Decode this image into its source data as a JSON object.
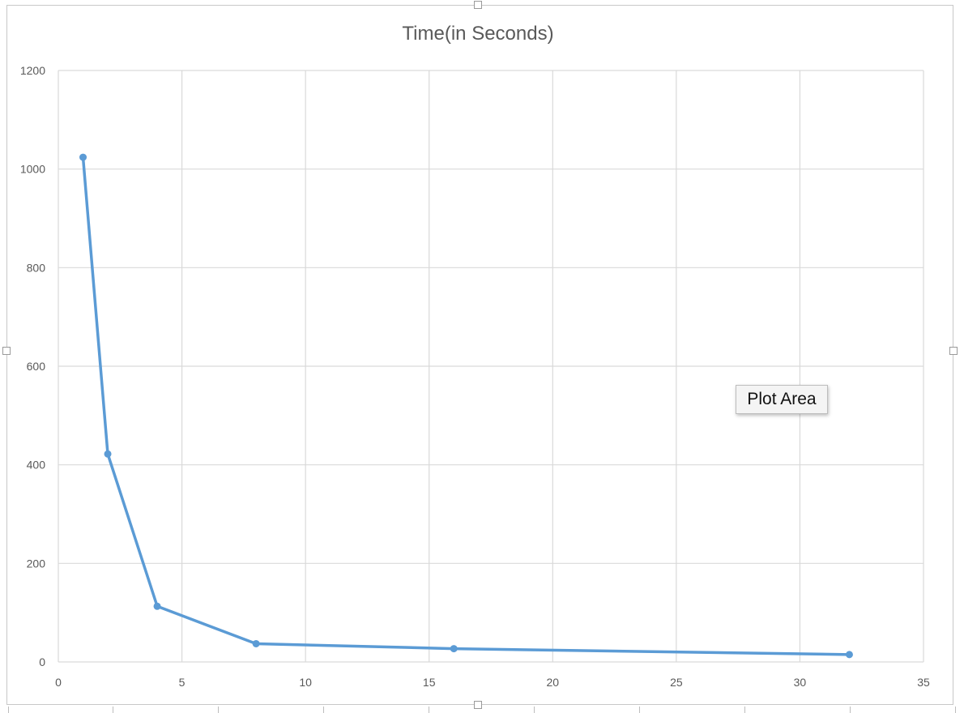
{
  "chart_data": {
    "type": "line",
    "title": "Time(in Seconds)",
    "xlabel": "",
    "ylabel": "",
    "x": [
      1,
      2,
      4,
      8,
      16,
      32
    ],
    "series": [
      {
        "values": [
          1024,
          422,
          113,
          37,
          27,
          15
        ]
      }
    ],
    "xlim": [
      0,
      35
    ],
    "ylim": [
      0,
      1200
    ],
    "x_ticks": [
      0,
      5,
      10,
      15,
      20,
      25,
      30,
      35
    ],
    "y_ticks": [
      0,
      200,
      400,
      600,
      800,
      1000,
      1200
    ],
    "grid": true,
    "legend": "none",
    "colors": {
      "series": "#5b9bd5",
      "grid": "#d9d9d9",
      "text": "#595959"
    }
  },
  "tooltip": {
    "text": "Plot Area"
  }
}
